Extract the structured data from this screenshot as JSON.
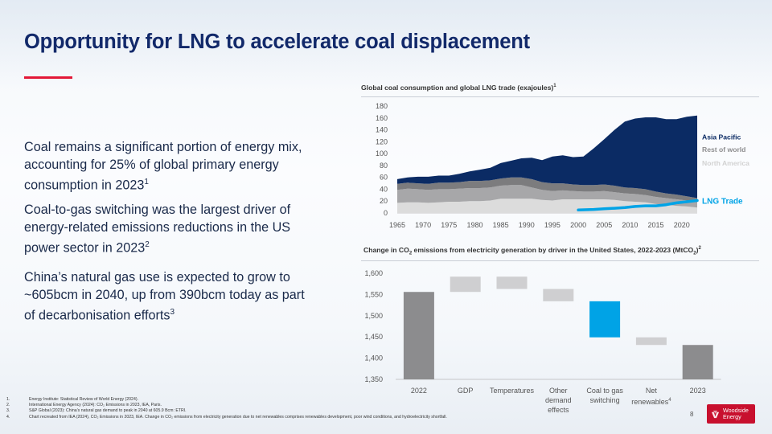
{
  "slide": {
    "title": "Opportunity for LNG to accelerate coal displacement",
    "page_number": "8",
    "brand": {
      "line1": "Woodside",
      "line2": "Energy",
      "color": "#c8102e"
    },
    "accent_color": "#e31837",
    "title_color": "#12296a"
  },
  "bullets": [
    {
      "text": "Coal remains a significant portion of energy mix, accounting for 25% of global primary energy consumption in 2023",
      "sup": "1"
    },
    {
      "text": "Coal-to-gas switching was the largest driver of energy-related emissions reductions in the US power sector in 2023",
      "sup": "2"
    },
    {
      "text": "China’s natural gas use is expected to grow to ~605bcm in 2040, up from 390bcm today as part of decarbonisation efforts",
      "sup": "3"
    }
  ],
  "chart_data": [
    {
      "type": "area",
      "title": "Global coal consumption and global LNG trade (exajoules)",
      "title_sup": "1",
      "ylim": [
        0,
        180
      ],
      "yticks": [
        "0",
        "20",
        "40",
        "60",
        "80",
        "100",
        "120",
        "140",
        "160",
        "180"
      ],
      "xticks": [
        "1965",
        "1970",
        "1975",
        "1980",
        "1985",
        "1990",
        "1995",
        "2000",
        "2005",
        "2010",
        "2015",
        "2020"
      ],
      "grid": false,
      "legend": "right, inline labels",
      "x": [
        1965,
        1967,
        1969,
        1971,
        1973,
        1975,
        1977,
        1979,
        1981,
        1983,
        1985,
        1987,
        1989,
        1991,
        1993,
        1995,
        1997,
        1999,
        2001,
        2003,
        2005,
        2007,
        2009,
        2011,
        2013,
        2015,
        2017,
        2019,
        2021,
        2023
      ],
      "stacked": true,
      "series": [
        {
          "name": "North America",
          "color": "#dcdcdc",
          "values": [
            17,
            18,
            18,
            17,
            18,
            19,
            19,
            20,
            20,
            21,
            24,
            24,
            24,
            24,
            22,
            21,
            23,
            23,
            23,
            23,
            23,
            22,
            20,
            19,
            18,
            15,
            14,
            12,
            11,
            9
          ]
        },
        {
          "name": "Rest of world",
          "color": "#a7a7a9",
          "values": [
            22,
            23,
            22,
            22,
            22,
            21,
            22,
            22,
            22,
            22,
            22,
            23,
            23,
            19,
            17,
            16,
            15,
            14,
            13,
            13,
            14,
            13,
            13,
            13,
            12,
            12,
            11,
            11,
            10,
            9
          ]
        },
        {
          "name": "",
          "color": "#7c7c7e",
          "values": [
            10,
            10,
            10,
            10,
            11,
            11,
            11,
            12,
            12,
            12,
            12,
            13,
            13,
            14,
            13,
            13,
            12,
            11,
            11,
            11,
            11,
            11,
            10,
            10,
            10,
            9,
            8,
            8,
            7,
            7
          ]
        },
        {
          "name": "Asia Pacific",
          "color": "#0b2b64",
          "values": [
            8,
            9,
            11,
            12,
            12,
            12,
            14,
            16,
            19,
            21,
            26,
            28,
            32,
            36,
            37,
            45,
            47,
            46,
            48,
            62,
            76,
            94,
            111,
            117,
            121,
            125,
            125,
            127,
            134,
            139
          ]
        }
      ],
      "overlay": {
        "name": "LNG Trade",
        "color": "#00a3e6",
        "x": [
          2000,
          2003,
          2005,
          2007,
          2009,
          2011,
          2013,
          2015,
          2017,
          2019,
          2021,
          2023
        ],
        "values": [
          5,
          6,
          7,
          8,
          9,
          11,
          12,
          12,
          14,
          17,
          19,
          21
        ]
      }
    },
    {
      "type": "bar",
      "subtype": "waterfall",
      "title_prefix": "Change in CO",
      "title_sub": "2",
      "title_middle": " emissions from electricity generation by driver in the United States, 2022-2023 (MtCO",
      "title_sub2": "2",
      "title_suffix": ")",
      "title_sup": "2",
      "ylim": [
        1350,
        1600
      ],
      "yticks": [
        "1,350",
        "1,400",
        "1,450",
        "1,500",
        "1,550",
        "1,600"
      ],
      "categories": [
        "2022",
        "GDP",
        "Temperatures",
        "Other demand effects",
        "Coal to gas switching",
        "Net renewables",
        "2023"
      ],
      "category_lines": [
        [
          "2022"
        ],
        [
          "GDP"
        ],
        [
          "Temperatures"
        ],
        [
          "Other",
          "demand",
          "effects"
        ],
        [
          "Coal to gas",
          "switching"
        ],
        [
          "Net",
          "renewables"
        ],
        [
          "2023"
        ]
      ],
      "category_sups": [
        "",
        "",
        "",
        "",
        "",
        "4",
        ""
      ],
      "bars": [
        {
          "category": "2022",
          "kind": "total",
          "start": 1350,
          "end": 1556,
          "color": "#8c8c8e"
        },
        {
          "category": "GDP",
          "kind": "change",
          "start": 1556,
          "end": 1592,
          "color": "#cfcfd1"
        },
        {
          "category": "Temperatures",
          "kind": "change",
          "start": 1563,
          "end": 1592,
          "color": "#cfcfd1"
        },
        {
          "category": "Other demand effects",
          "kind": "change",
          "start": 1534,
          "end": 1563,
          "color": "#cfcfd1"
        },
        {
          "category": "Coal to gas switching",
          "kind": "change",
          "start": 1449,
          "end": 1534,
          "color": "#00a3e6"
        },
        {
          "category": "Net renewables",
          "kind": "change",
          "start": 1431,
          "end": 1449,
          "color": "#cfcfd1"
        },
        {
          "category": "2023",
          "kind": "total",
          "start": 1350,
          "end": 1431,
          "color": "#8c8c8e"
        }
      ]
    }
  ],
  "footnotes": [
    {
      "num": "1.",
      "text": "Energy Institute: Statistical Review of World Energy (2024)."
    },
    {
      "num": "2.",
      "text": "International Energy Agency (2024): CO₂ Emissions in 2023, IEA, Paris."
    },
    {
      "num": "3.",
      "text": "S&P Global (2023): China’s natural gas demand to peak in 2040 at 605.9 Bcm: ETRI."
    },
    {
      "num": "4.",
      "text": "Chart recreated from IEA (2024), CO₂ Emissions in 2023, IEA. Change in CO₂ emissions from electricity generation due to net renewables comprises renewables development, poor wind conditions, and hydroelectricity shortfall."
    }
  ]
}
